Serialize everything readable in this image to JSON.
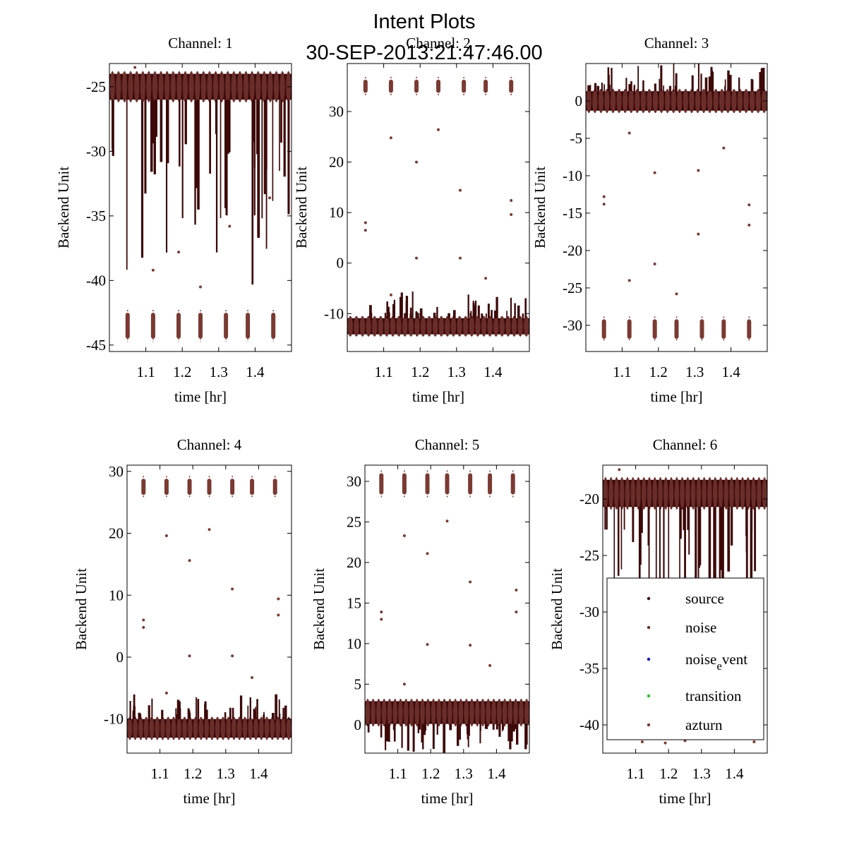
{
  "figure": {
    "title_line1": "Intent Plots",
    "title_line2": "30-SEP-2013:21:47:46.00"
  },
  "colors": {
    "source": "#3d0808",
    "noise": "#6a2e2a",
    "noise_event": "#1010e0",
    "transition": "#10d020",
    "azturn": "#7a3a32"
  },
  "legend": {
    "entries": [
      {
        "key": "source",
        "base": "source",
        "sub": "",
        "rest": ""
      },
      {
        "key": "noise",
        "base": "noise",
        "sub": "",
        "rest": ""
      },
      {
        "key": "noise_event",
        "base": "noise",
        "sub": "e",
        "rest": "vent"
      },
      {
        "key": "transition",
        "base": "transition",
        "sub": "",
        "rest": ""
      },
      {
        "key": "azturn",
        "base": "azturn",
        "sub": "",
        "rest": ""
      }
    ]
  },
  "chart_data": [
    {
      "type": "scatter",
      "title": "Channel: 1",
      "xlabel": "time [hr]",
      "ylabel": "Backend Unit",
      "xlim": [
        1.0,
        1.5
      ],
      "ylim": [
        -45.5,
        -23.2
      ],
      "xticks": [
        1.1,
        1.2,
        1.3,
        1.4
      ],
      "xtick_labels": [
        "1.1",
        "1.2",
        "1.3",
        "1.4"
      ],
      "yticks": [
        -45,
        -40,
        -35,
        -30,
        -25
      ],
      "ytick_labels": [
        "-45",
        "-40",
        "-35",
        "-30",
        "-25"
      ],
      "band_main": {
        "center": -25.0,
        "halfwidth": 1.0
      },
      "band_alt": {
        "center": -43.5,
        "halfwidth": 1.0
      },
      "spikes": "down",
      "spike_max_depth": 12.0,
      "outliers": [
        [
          1.04,
          -24.0
        ],
        [
          1.12,
          -39.2
        ],
        [
          1.19,
          -37.8
        ],
        [
          1.25,
          -40.5
        ],
        [
          1.33,
          -35.8
        ],
        [
          1.44,
          -33.6
        ],
        [
          1.07,
          -23.5
        ]
      ]
    },
    {
      "type": "scatter",
      "title": "Channel: 2",
      "xlabel": "time [hr]",
      "ylabel": "Backend Unit",
      "xlim": [
        1.0,
        1.5
      ],
      "ylim": [
        -17.5,
        39.5
      ],
      "xticks": [
        1.1,
        1.2,
        1.3,
        1.4
      ],
      "xtick_labels": [
        "1.1",
        "1.2",
        "1.3",
        "1.4"
      ],
      "yticks": [
        -10,
        0,
        10,
        20,
        30
      ],
      "ytick_labels": [
        "-10",
        "0",
        "10",
        "20",
        "30"
      ],
      "band_main": {
        "center": -12.5,
        "halfwidth": 1.6
      },
      "band_alt": {
        "center": 35.0,
        "halfwidth": 1.3
      },
      "spikes": "up",
      "spike_max_depth": 4.5,
      "outliers": [
        [
          1.05,
          8.0
        ],
        [
          1.05,
          6.5
        ],
        [
          1.12,
          24.8
        ],
        [
          1.19,
          20.0
        ],
        [
          1.19,
          1.0
        ],
        [
          1.25,
          26.4
        ],
        [
          1.31,
          14.4
        ],
        [
          1.31,
          1.0
        ],
        [
          1.38,
          -3.0
        ],
        [
          1.45,
          12.4
        ],
        [
          1.45,
          9.6
        ],
        [
          1.12,
          -6.3
        ]
      ]
    },
    {
      "type": "scatter",
      "title": "Channel: 3",
      "xlabel": "time [hr]",
      "ylabel": "Backend Unit",
      "xlim": [
        1.0,
        1.5
      ],
      "ylim": [
        -33.5,
        5.0
      ],
      "xticks": [
        1.1,
        1.2,
        1.3,
        1.4
      ],
      "xtick_labels": [
        "1.1",
        "1.2",
        "1.3",
        "1.4"
      ],
      "yticks": [
        -30,
        -25,
        -20,
        -15,
        -10,
        -5,
        0
      ],
      "ytick_labels": [
        "-30",
        "-25",
        "-20",
        "-15",
        "-10",
        "-5",
        "0"
      ],
      "band_main": {
        "center": 0.0,
        "halfwidth": 1.3
      },
      "band_alt": {
        "center": -30.5,
        "halfwidth": 1.3
      },
      "spikes": "up",
      "spike_max_depth": 3.5,
      "outliers": [
        [
          1.05,
          -12.8
        ],
        [
          1.05,
          -13.8
        ],
        [
          1.12,
          -24.0
        ],
        [
          1.19,
          -9.6
        ],
        [
          1.19,
          -21.8
        ],
        [
          1.25,
          -25.8
        ],
        [
          1.31,
          -9.3
        ],
        [
          1.31,
          -17.8
        ],
        [
          1.38,
          -6.3
        ],
        [
          1.45,
          -13.9
        ],
        [
          1.45,
          -16.6
        ],
        [
          1.12,
          -4.3
        ]
      ]
    },
    {
      "type": "scatter",
      "title": "Channel: 4",
      "xlabel": "time [hr]",
      "ylabel": "Backend Unit",
      "xlim": [
        1.0,
        1.5
      ],
      "ylim": [
        -15.5,
        31.0
      ],
      "xticks": [
        1.1,
        1.2,
        1.3,
        1.4
      ],
      "xtick_labels": [
        "1.1",
        "1.2",
        "1.3",
        "1.4"
      ],
      "yticks": [
        -10,
        0,
        10,
        20,
        30
      ],
      "ytick_labels": [
        "-10",
        "0",
        "10",
        "20",
        "30"
      ],
      "band_main": {
        "center": -11.5,
        "halfwidth": 1.5
      },
      "band_alt": {
        "center": 27.5,
        "halfwidth": 1.3
      },
      "spikes": "up",
      "spike_max_depth": 3.5,
      "outliers": [
        [
          1.05,
          6.0
        ],
        [
          1.05,
          4.8
        ],
        [
          1.12,
          19.6
        ],
        [
          1.19,
          15.6
        ],
        [
          1.19,
          0.2
        ],
        [
          1.25,
          20.6
        ],
        [
          1.32,
          11.0
        ],
        [
          1.32,
          0.2
        ],
        [
          1.38,
          -3.3
        ],
        [
          1.46,
          9.4
        ],
        [
          1.46,
          6.8
        ],
        [
          1.12,
          -5.8
        ]
      ]
    },
    {
      "type": "scatter",
      "title": "Channel: 5",
      "xlabel": "time [hr]",
      "ylabel": "Backend Unit",
      "xlim": [
        1.0,
        1.5
      ],
      "ylim": [
        -3.5,
        32.0
      ],
      "xticks": [
        1.1,
        1.2,
        1.3,
        1.4
      ],
      "xtick_labels": [
        "1.1",
        "1.2",
        "1.3",
        "1.4"
      ],
      "yticks": [
        0,
        5,
        10,
        15,
        20,
        25,
        30
      ],
      "ytick_labels": [
        "0",
        "5",
        "10",
        "15",
        "20",
        "25",
        "30"
      ],
      "band_main": {
        "center": 1.5,
        "halfwidth": 1.4
      },
      "band_alt": {
        "center": 29.7,
        "halfwidth": 1.3
      },
      "spikes": "down",
      "spike_max_depth": 3.0,
      "outliers": [
        [
          1.05,
          13.9
        ],
        [
          1.05,
          13.0
        ],
        [
          1.12,
          23.3
        ],
        [
          1.19,
          21.1
        ],
        [
          1.19,
          9.9
        ],
        [
          1.25,
          25.1
        ],
        [
          1.32,
          17.6
        ],
        [
          1.32,
          9.8
        ],
        [
          1.38,
          7.3
        ],
        [
          1.46,
          16.6
        ],
        [
          1.46,
          13.9
        ],
        [
          1.12,
          5.0
        ]
      ]
    },
    {
      "type": "scatter",
      "title": "Channel: 6",
      "xlabel": "time [hr]",
      "ylabel": "Backend Unit",
      "xlim": [
        1.0,
        1.5
      ],
      "ylim": [
        -42.5,
        -17.0
      ],
      "xticks": [
        1.1,
        1.2,
        1.3,
        1.4
      ],
      "xtick_labels": [
        "1.1",
        "1.2",
        "1.3",
        "1.4"
      ],
      "yticks": [
        -40,
        -35,
        -30,
        -25,
        -20
      ],
      "ytick_labels": [
        "-40",
        "-35",
        "-30",
        "-25",
        "-20"
      ],
      "band_main": {
        "center": -19.5,
        "halfwidth": 1.2
      },
      "band_alt": null,
      "spikes": "down",
      "spike_max_depth": 10.0,
      "outliers": [
        [
          1.05,
          -17.4
        ],
        [
          1.12,
          -41.5
        ],
        [
          1.19,
          -41.6
        ],
        [
          1.25,
          -41.4
        ],
        [
          1.38,
          -41.2
        ],
        [
          1.46,
          -41.5
        ]
      ],
      "legend": true
    }
  ]
}
